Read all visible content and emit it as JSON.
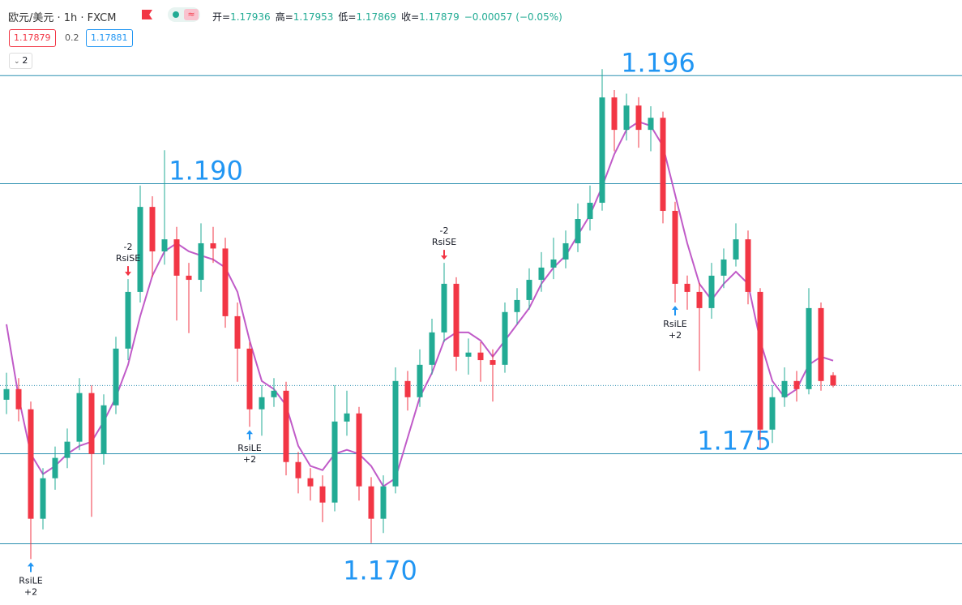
{
  "header": {
    "title": "欧元/美元 · 1h · FXCM",
    "ohlc": [
      {
        "label": "开=",
        "value": "1.17936"
      },
      {
        "label": "高=",
        "value": "1.17953"
      },
      {
        "label": "低=",
        "value": "1.17869"
      },
      {
        "label": "收=",
        "value": "1.17879"
      }
    ],
    "change": "−0.00057 (−0.05%)",
    "sell": "1.17879",
    "spread": "0.2",
    "buy": "1.17881",
    "collapse": "2"
  },
  "chart_data": {
    "type": "candlestick",
    "open": [
      1.178,
      1.17859,
      1.17747,
      1.17139,
      1.17364,
      1.17477,
      1.17567,
      1.17837,
      1.17499,
      1.17769,
      1.18084,
      1.18399,
      1.18871,
      1.18624,
      1.18691,
      1.18489,
      1.18466,
      1.18669,
      1.1864,
      1.18264,
      1.18084,
      1.17747,
      1.17814,
      1.1785,
      1.17454,
      1.17364,
      1.17319,
      1.17229,
      1.17679,
      1.17724,
      1.17319,
      1.17139,
      1.17319,
      1.17904,
      1.17814,
      1.17994,
      1.18174,
      1.18444,
      1.18039,
      1.18062,
      1.1802,
      1.17994,
      1.18287,
      1.18354,
      1.18466,
      1.18534,
      1.18579,
      1.18669,
      1.18804,
      1.18894,
      1.19479,
      1.19299,
      1.19434,
      1.19299,
      1.19366,
      1.18849,
      1.18444,
      1.18399,
      1.18309,
      1.18489,
      1.18579,
      1.18691,
      1.18399,
      1.17634,
      1.17814,
      1.17904,
      1.17859,
      1.18309,
      1.17936
    ],
    "high": [
      1.1795,
      1.1792,
      1.1779,
      1.1742,
      1.1754,
      1.1764,
      1.1792,
      1.1788,
      1.1783,
      1.1815,
      1.1847,
      1.1899,
      1.1893,
      1.19186,
      1.1876,
      1.1856,
      1.1878,
      1.1876,
      1.187,
      1.1834,
      1.1812,
      1.1788,
      1.1792,
      1.179,
      1.1751,
      1.1742,
      1.1738,
      1.1788,
      1.1785,
      1.1776,
      1.1737,
      1.1738,
      1.1798,
      1.1796,
      1.1808,
      1.1825,
      1.1856,
      1.1848,
      1.1814,
      1.1812,
      1.1808,
      1.1834,
      1.1842,
      1.1853,
      1.1862,
      1.187,
      1.1874,
      1.1889,
      1.1899,
      1.19636,
      1.1952,
      1.195,
      1.1948,
      1.1943,
      1.194,
      1.189,
      1.1849,
      1.1845,
      1.1856,
      1.1864,
      1.1878,
      1.1874,
      1.1842,
      1.1788,
      1.1798,
      1.1796,
      1.1842,
      1.1834,
      1.17953
    ],
    "low": [
      1.1772,
      1.1768,
      1.16915,
      1.1708,
      1.173,
      1.1742,
      1.1752,
      1.1715,
      1.1744,
      1.1772,
      1.1802,
      1.1834,
      1.1848,
      1.1855,
      1.1824,
      1.1817,
      1.184,
      1.1856,
      1.182,
      1.179,
      1.1765,
      1.176,
      1.1776,
      1.1738,
      1.1728,
      1.1724,
      1.1712,
      1.1718,
      1.176,
      1.1724,
      1.17004,
      1.1706,
      1.1728,
      1.1774,
      1.1776,
      1.1794,
      1.1812,
      1.1796,
      1.1794,
      1.179,
      1.1779,
      1.1795,
      1.1822,
      1.183,
      1.184,
      1.1847,
      1.1853,
      1.1862,
      1.1874,
      1.1885,
      1.1918,
      1.1924,
      1.192,
      1.1918,
      1.1878,
      1.1834,
      1.183,
      1.1796,
      1.1825,
      1.1842,
      1.1854,
      1.1833,
      1.1753,
      1.1756,
      1.1776,
      1.1779,
      1.1783,
      1.1785,
      1.17869
    ],
    "close": [
      1.17859,
      1.17747,
      1.17139,
      1.17364,
      1.17477,
      1.17567,
      1.17837,
      1.17499,
      1.17769,
      1.18084,
      1.18399,
      1.18871,
      1.18624,
      1.18691,
      1.18489,
      1.18466,
      1.18669,
      1.1864,
      1.18264,
      1.18084,
      1.17747,
      1.17814,
      1.1785,
      1.17454,
      1.17364,
      1.17319,
      1.17229,
      1.17679,
      1.17724,
      1.17319,
      1.17139,
      1.17319,
      1.17904,
      1.17814,
      1.17994,
      1.18174,
      1.18444,
      1.18039,
      1.18062,
      1.1802,
      1.17994,
      1.18287,
      1.18354,
      1.18466,
      1.18534,
      1.18579,
      1.18669,
      1.18804,
      1.18894,
      1.19479,
      1.19299,
      1.19434,
      1.19299,
      1.19366,
      1.18849,
      1.18444,
      1.18399,
      1.18309,
      1.18489,
      1.18579,
      1.18691,
      1.18399,
      1.17634,
      1.17814,
      1.17904,
      1.17859,
      1.18309,
      1.17904,
      1.17879
    ],
    "ma_values": [
      1.18219,
      1.17814,
      1.17499,
      1.17387,
      1.17432,
      1.17499,
      1.17544,
      1.17567,
      1.17679,
      1.17814,
      1.17994,
      1.18264,
      1.18489,
      1.18624,
      1.18669,
      1.18624,
      1.18601,
      1.18579,
      1.18534,
      1.18399,
      1.18129,
      1.17904,
      1.17859,
      1.17769,
      1.17544,
      1.17432,
      1.17409,
      1.17499,
      1.17522,
      1.17499,
      1.17432,
      1.17319,
      1.17364,
      1.17589,
      1.17814,
      1.17949,
      1.18129,
      1.18174,
      1.18174,
      1.18129,
      1.18039,
      1.18129,
      1.18219,
      1.18309,
      1.18444,
      1.18534,
      1.18601,
      1.18714,
      1.18826,
      1.18984,
      1.19164,
      1.19299,
      1.19344,
      1.19321,
      1.19209,
      1.18939,
      1.18669,
      1.18444,
      1.18354,
      1.18444,
      1.18511,
      1.18444,
      1.18129,
      1.17904,
      1.17814,
      1.17859,
      1.17994,
      1.18039,
      1.18017
    ],
    "up_color": "#22ab94",
    "down_color": "#f23645",
    "ma_color": "#c05bc8",
    "level_color": "#2a8fb0",
    "ylim": [
      1.1666,
      1.1984
    ],
    "last_price": 1.17879,
    "levels": [
      {
        "value": 1.196,
        "label": "1.196"
      },
      {
        "value": 1.19,
        "label": "1.190"
      },
      {
        "value": 1.175,
        "label": "1.175"
      },
      {
        "value": 1.17,
        "label": "1.170"
      }
    ],
    "markers": [
      {
        "candle": 2,
        "side": "long",
        "label": "RsiLE",
        "qty": "+2"
      },
      {
        "candle": 10,
        "side": "short",
        "label": "RsiSE",
        "qty": "-2"
      },
      {
        "candle": 20,
        "side": "long",
        "label": "RsiLE",
        "qty": "+2"
      },
      {
        "candle": 36,
        "side": "short",
        "label": "RsiSE",
        "qty": "-2"
      },
      {
        "candle": 55,
        "side": "long",
        "label": "RsiLE",
        "qty": "+2"
      }
    ]
  }
}
